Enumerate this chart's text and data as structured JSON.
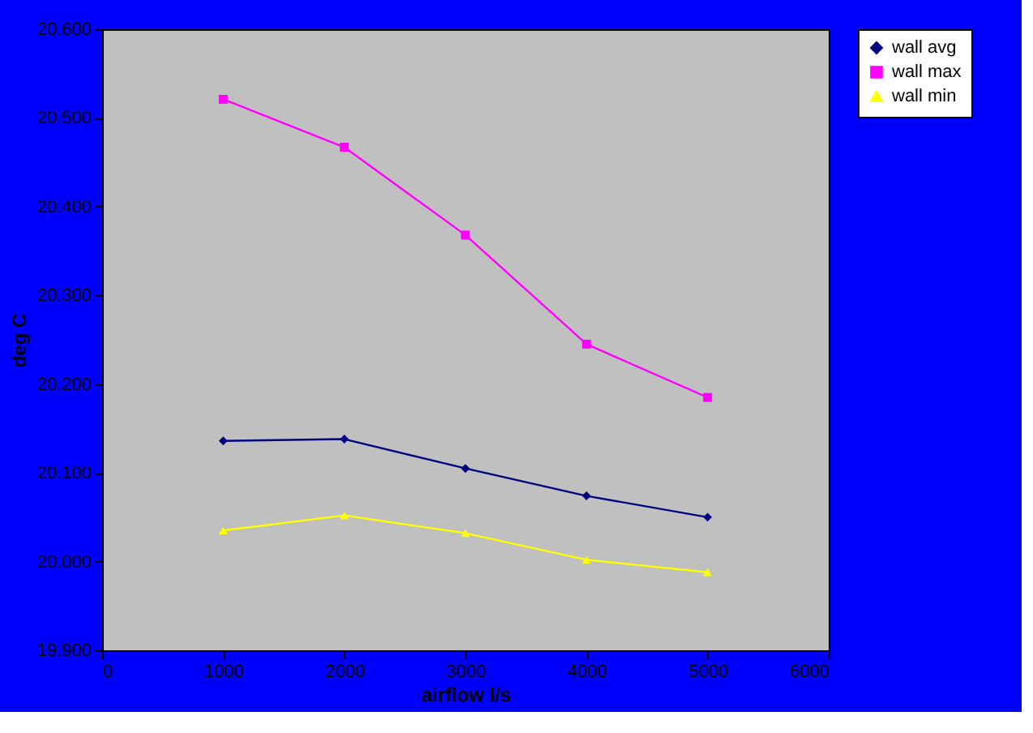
{
  "chart_data": {
    "type": "line",
    "xlabel": "airflow l/s",
    "ylabel": "deg C",
    "x": [
      1000,
      2000,
      3000,
      4000,
      5000
    ],
    "series": [
      {
        "name": "wall avg",
        "color": "#000080",
        "marker": "diamond",
        "values": [
          20.136,
          20.138,
          20.105,
          20.074,
          20.05
        ]
      },
      {
        "name": "wall max",
        "color": "#ff00ff",
        "marker": "square",
        "values": [
          20.521,
          20.467,
          20.368,
          20.245,
          20.185
        ]
      },
      {
        "name": "wall min",
        "color": "#ffff00",
        "marker": "triangle",
        "values": [
          20.035,
          20.052,
          20.032,
          20.002,
          19.988
        ]
      }
    ],
    "xlim": [
      0,
      6000
    ],
    "xticks": [
      0,
      1000,
      2000,
      3000,
      4000,
      5000,
      6000
    ],
    "ylim": [
      19.9,
      20.6
    ],
    "yticks": [
      {
        "value": 19.9,
        "label": "19.900"
      },
      {
        "value": 20.0,
        "label": "20.000"
      },
      {
        "value": 20.1,
        "label": "20.100"
      },
      {
        "value": 20.2,
        "label": "20.200"
      },
      {
        "value": 20.3,
        "label": "20.300"
      },
      {
        "value": 20.4,
        "label": "20.400"
      },
      {
        "value": 20.5,
        "label": "20.500"
      },
      {
        "value": 20.6,
        "label": "20.600"
      }
    ],
    "grid": false,
    "legend": "right",
    "line_style": "solid"
  }
}
